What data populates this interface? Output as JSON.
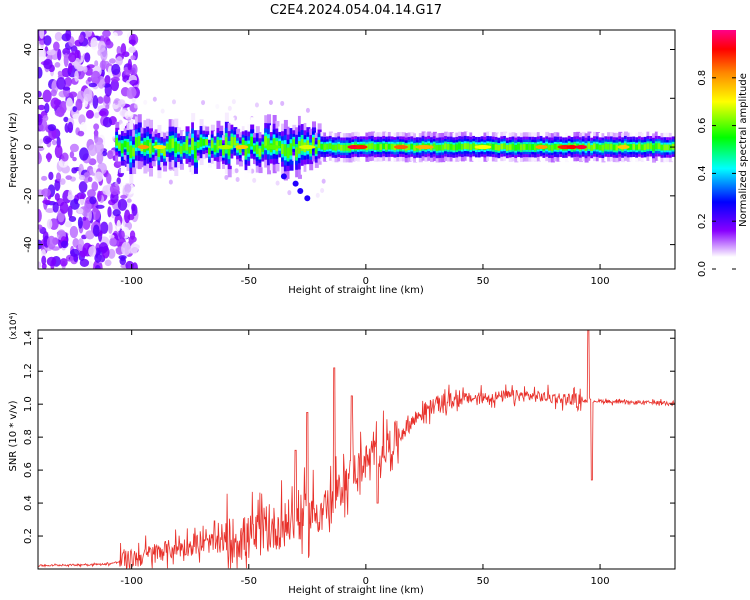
{
  "title": "C2E4.2024.054.04.14.G17",
  "chart_data": [
    {
      "type": "heatmap",
      "xlabel": "Height of straight line (km)",
      "ylabel": "Frequency (Hz)",
      "xlim": [
        -140,
        132
      ],
      "ylim": [
        -50,
        48
      ],
      "xticks": [
        -100,
        -50,
        0,
        50,
        100
      ],
      "yticks": [
        -40,
        -20,
        0,
        20,
        40
      ],
      "colorbar": {
        "label": "Normalized spectral amplitude",
        "range": [
          0,
          1
        ],
        "ticks": [
          0.0,
          0.2,
          0.4,
          0.6,
          0.8
        ],
        "colors": [
          "#ffffff",
          "#8800ff",
          "#0000ff",
          "#00ffff",
          "#00ff00",
          "#ffff00",
          "#ff8800",
          "#ff0000",
          "#ff0088"
        ]
      },
      "features": {
        "noise_region_x": [
          -140,
          -108
        ],
        "carrier_frequency_hz": 0,
        "scatter_region_x": [
          -105,
          -20
        ],
        "drifting_trace_points": [
          [
            -35,
            -12
          ],
          [
            -30,
            -15
          ],
          [
            -28,
            -18
          ],
          [
            -25,
            -21
          ]
        ]
      }
    },
    {
      "type": "line",
      "xlabel": "Height of straight line (km)",
      "ylabel": "SNR (10 * v/v)",
      "yscale_label": "(x10⁴)",
      "xlim": [
        -140,
        132
      ],
      "ylim": [
        0,
        1.45
      ],
      "xticks": [
        -100,
        -50,
        0,
        50,
        100
      ],
      "yticks": [
        0.2,
        0.4,
        0.6,
        0.8,
        1.0,
        1.2,
        1.4
      ],
      "line_color": "#e8302a",
      "trend": {
        "x": [
          -140,
          -110,
          -100,
          -90,
          -80,
          -70,
          -60,
          -50,
          -40,
          -30,
          -20,
          -15,
          -10,
          -5,
          0,
          5,
          10,
          15,
          20,
          25,
          30,
          40,
          50,
          60,
          70,
          80,
          90,
          95,
          100,
          110,
          120,
          132
        ],
        "y": [
          0.02,
          0.03,
          0.06,
          0.1,
          0.13,
          0.15,
          0.17,
          0.19,
          0.24,
          0.3,
          0.35,
          0.4,
          0.5,
          0.6,
          0.65,
          0.7,
          0.75,
          0.82,
          0.9,
          0.96,
          1.0,
          1.03,
          1.04,
          1.05,
          1.05,
          1.04,
          1.03,
          1.02,
          1.02,
          1.01,
          1.01,
          1.01
        ]
      },
      "spikes": [
        {
          "x": -13.5,
          "y": 1.22
        },
        {
          "x": -6,
          "y": 1.05
        },
        {
          "x": -25,
          "y": 0.95
        },
        {
          "x": -30,
          "y": 0.72
        },
        {
          "x": 95,
          "y": 1.45
        },
        {
          "x": 96.5,
          "y": 0.54
        },
        {
          "x": 5,
          "y": 0.4
        }
      ]
    }
  ]
}
